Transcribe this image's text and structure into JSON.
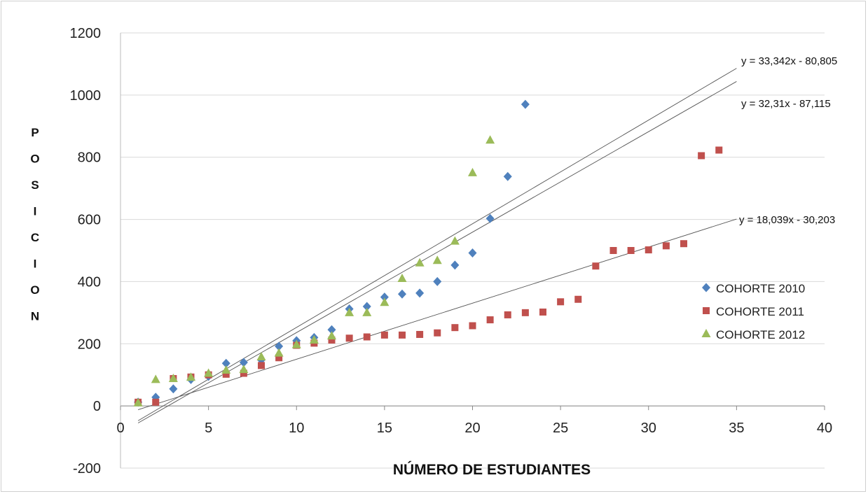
{
  "chart_data": {
    "type": "scatter",
    "xlabel": "NÚMERO DE ESTUDIANTES",
    "ylabel": "POSICION",
    "xlim": [
      0,
      40
    ],
    "ylim": [
      -200,
      1200
    ],
    "xticks": [
      "0",
      "5",
      "10",
      "15",
      "20",
      "25",
      "30",
      "35",
      "40"
    ],
    "yticks": [
      "1200",
      "1000",
      "800",
      "600",
      "400",
      "200",
      "0",
      "-200"
    ],
    "grid": "horizontal",
    "legend_position": "right",
    "series": [
      {
        "name": "COHORTE 2010",
        "marker": "diamond",
        "color": "#4f81bd",
        "points": [
          [
            1,
            12
          ],
          [
            2,
            28
          ],
          [
            3,
            55
          ],
          [
            4,
            85
          ],
          [
            5,
            95
          ],
          [
            6,
            137
          ],
          [
            7,
            140
          ],
          [
            8,
            148
          ],
          [
            9,
            192
          ],
          [
            10,
            210
          ],
          [
            11,
            220
          ],
          [
            12,
            245
          ],
          [
            13,
            312
          ],
          [
            14,
            320
          ],
          [
            15,
            350
          ],
          [
            16,
            360
          ],
          [
            17,
            363
          ],
          [
            18,
            400
          ],
          [
            19,
            453
          ],
          [
            20,
            492
          ],
          [
            21,
            603
          ],
          [
            22,
            738
          ],
          [
            23,
            970
          ]
        ]
      },
      {
        "name": "COHORTE 2011",
        "marker": "square",
        "color": "#c0504d",
        "points": [
          [
            1,
            12
          ],
          [
            2,
            12
          ],
          [
            3,
            88
          ],
          [
            4,
            93
          ],
          [
            5,
            100
          ],
          [
            6,
            102
          ],
          [
            7,
            105
          ],
          [
            8,
            130
          ],
          [
            9,
            155
          ],
          [
            10,
            195
          ],
          [
            11,
            202
          ],
          [
            12,
            212
          ],
          [
            13,
            218
          ],
          [
            14,
            222
          ],
          [
            15,
            228
          ],
          [
            16,
            228
          ],
          [
            17,
            230
          ],
          [
            18,
            235
          ],
          [
            19,
            252
          ],
          [
            20,
            258
          ],
          [
            21,
            277
          ],
          [
            22,
            293
          ],
          [
            23,
            300
          ],
          [
            24,
            302
          ],
          [
            25,
            335
          ],
          [
            26,
            343
          ],
          [
            27,
            450
          ],
          [
            28,
            500
          ],
          [
            29,
            500
          ],
          [
            30,
            502
          ],
          [
            31,
            515
          ],
          [
            32,
            522
          ],
          [
            33,
            805
          ],
          [
            34,
            823
          ]
        ]
      },
      {
        "name": "COHORTE 2012",
        "marker": "triangle",
        "color": "#9bbb59",
        "points": [
          [
            1,
            10
          ],
          [
            2,
            85
          ],
          [
            3,
            88
          ],
          [
            4,
            92
          ],
          [
            5,
            105
          ],
          [
            6,
            115
          ],
          [
            7,
            117
          ],
          [
            8,
            158
          ],
          [
            9,
            170
          ],
          [
            10,
            197
          ],
          [
            11,
            212
          ],
          [
            12,
            225
          ],
          [
            13,
            300
          ],
          [
            14,
            300
          ],
          [
            15,
            333
          ],
          [
            16,
            410
          ],
          [
            17,
            460
          ],
          [
            18,
            468
          ],
          [
            19,
            530
          ],
          [
            20,
            750
          ],
          [
            21,
            855
          ]
        ]
      }
    ],
    "trendlines": [
      {
        "equation": "y = 33,342x - 80,805",
        "slope": 33.342,
        "intercept": -80.805,
        "x_range": [
          1,
          35
        ]
      },
      {
        "equation": "y = 32,31x - 87,115",
        "slope": 32.31,
        "intercept": -87.115,
        "x_range": [
          1,
          35
        ]
      },
      {
        "equation": "y = 18,039x - 30,203",
        "slope": 18.039,
        "intercept": -30.203,
        "x_range": [
          1,
          35
        ]
      }
    ]
  }
}
